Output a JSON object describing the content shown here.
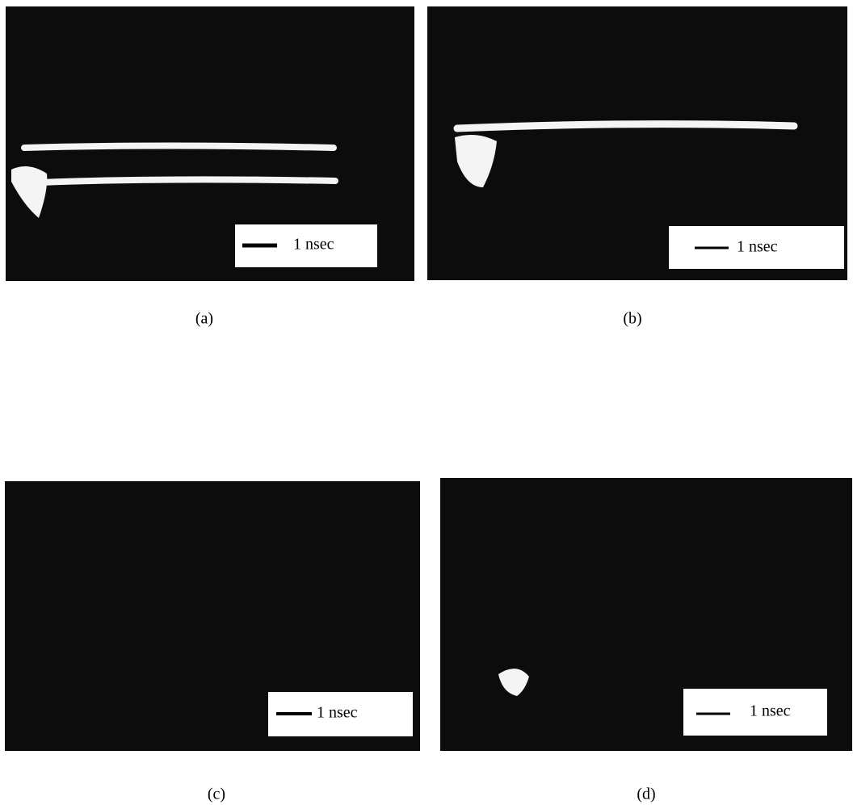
{
  "panels": [
    {
      "label": "(a)",
      "scale": "1 nsec"
    },
    {
      "label": "(b)",
      "scale": "1 nsec"
    },
    {
      "label": "(c)",
      "scale": "1 nsec"
    },
    {
      "label": "(d)",
      "scale": "1 nsec"
    }
  ]
}
